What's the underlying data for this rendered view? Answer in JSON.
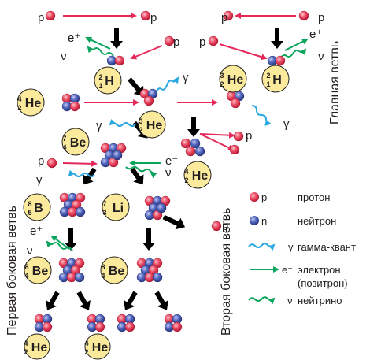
{
  "symbols": {
    "proton": "p",
    "neutron": "n",
    "gamma": "γ",
    "neutrino": "ν",
    "positron": "e⁺",
    "electron": "e⁻"
  },
  "nuclides": {
    "H2": {
      "symbol": "H",
      "mass": "2",
      "charge": "1"
    },
    "He3": {
      "symbol": "He",
      "mass": "3",
      "charge": "2"
    },
    "He4": {
      "symbol": "He",
      "mass": "4",
      "charge": "2"
    },
    "Be7": {
      "symbol": "Be",
      "mass": "7",
      "charge": "4"
    },
    "Li7": {
      "symbol": "Li",
      "mass": "7",
      "charge": "3"
    },
    "B8": {
      "symbol": "B",
      "mass": "8",
      "charge": "5"
    },
    "Be8": {
      "symbol": "Be",
      "mass": "8",
      "charge": "4"
    }
  },
  "branches": {
    "main": "Главная ветвь",
    "first_side": "Первая боковая ветвь",
    "second_side": "Вторая боковая ветвь"
  },
  "legend": {
    "proton": {
      "symbol": "p",
      "label": "протон"
    },
    "neutron": {
      "symbol": "n",
      "label": "нейтрон"
    },
    "gamma": {
      "symbol": "γ",
      "label": "гамма-квант"
    },
    "electron": {
      "symbol": "e⁻",
      "label": "электрон",
      "label2": "(позитрон)"
    },
    "neutrino": {
      "symbol": "ν",
      "label": "нейтрино"
    }
  },
  "colors": {
    "proton": "#e8354f",
    "neutron": "#4a5fb5",
    "badge_fill": "#fbea9c",
    "reaction_arrow": "#e52a5a",
    "gamma_wave": "#29a8e0",
    "electron_arrow": "#0aa55c",
    "neutrino_wave": "#0aa55c",
    "flow_arrow": "#231f20"
  }
}
